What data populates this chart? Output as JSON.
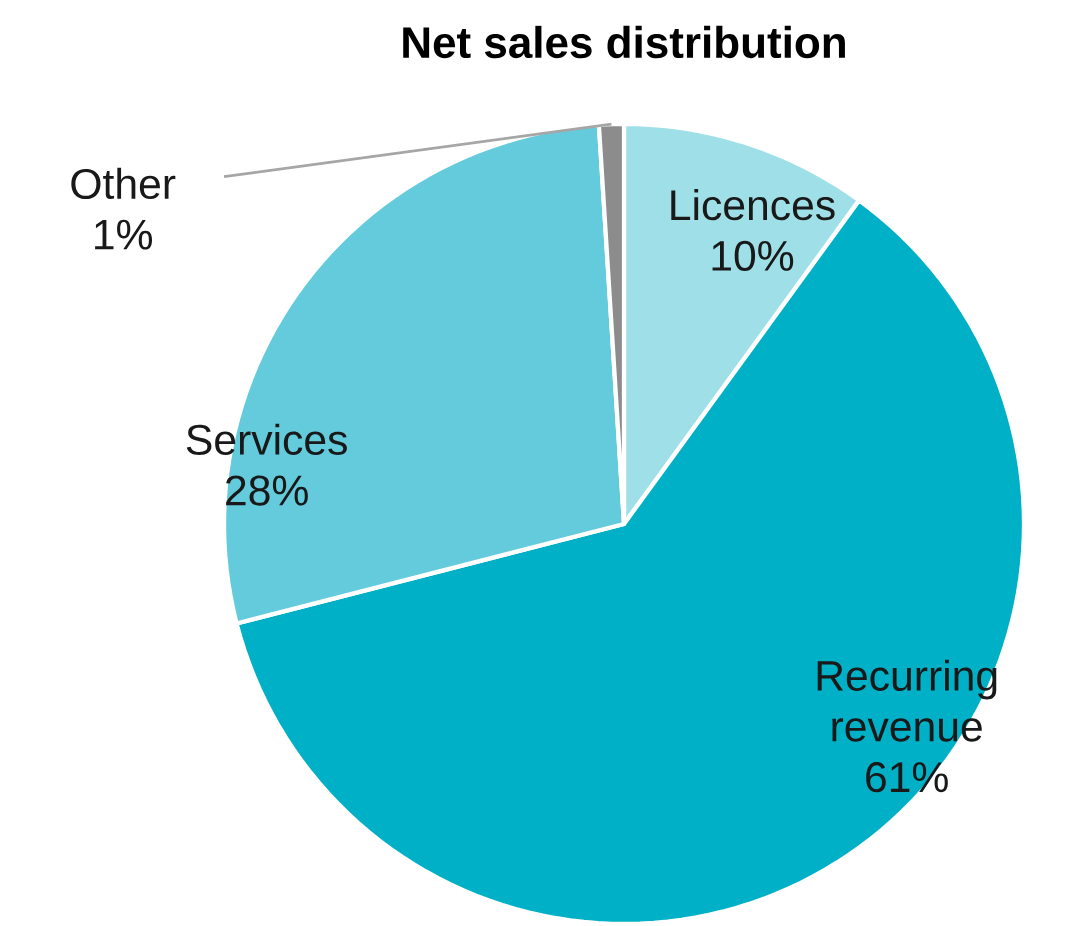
{
  "chart_data": {
    "type": "pie",
    "title": "Net sales distribution",
    "categories": [
      "Licences",
      "Recurring revenue",
      "Services",
      "Other"
    ],
    "values": [
      10,
      61,
      28,
      1
    ],
    "value_labels": [
      "10%",
      "61%",
      "28%",
      "1%"
    ],
    "colors": [
      "#9fe0e8",
      "#00b0c6",
      "#63cbdb",
      "#8c8c8c"
    ]
  }
}
